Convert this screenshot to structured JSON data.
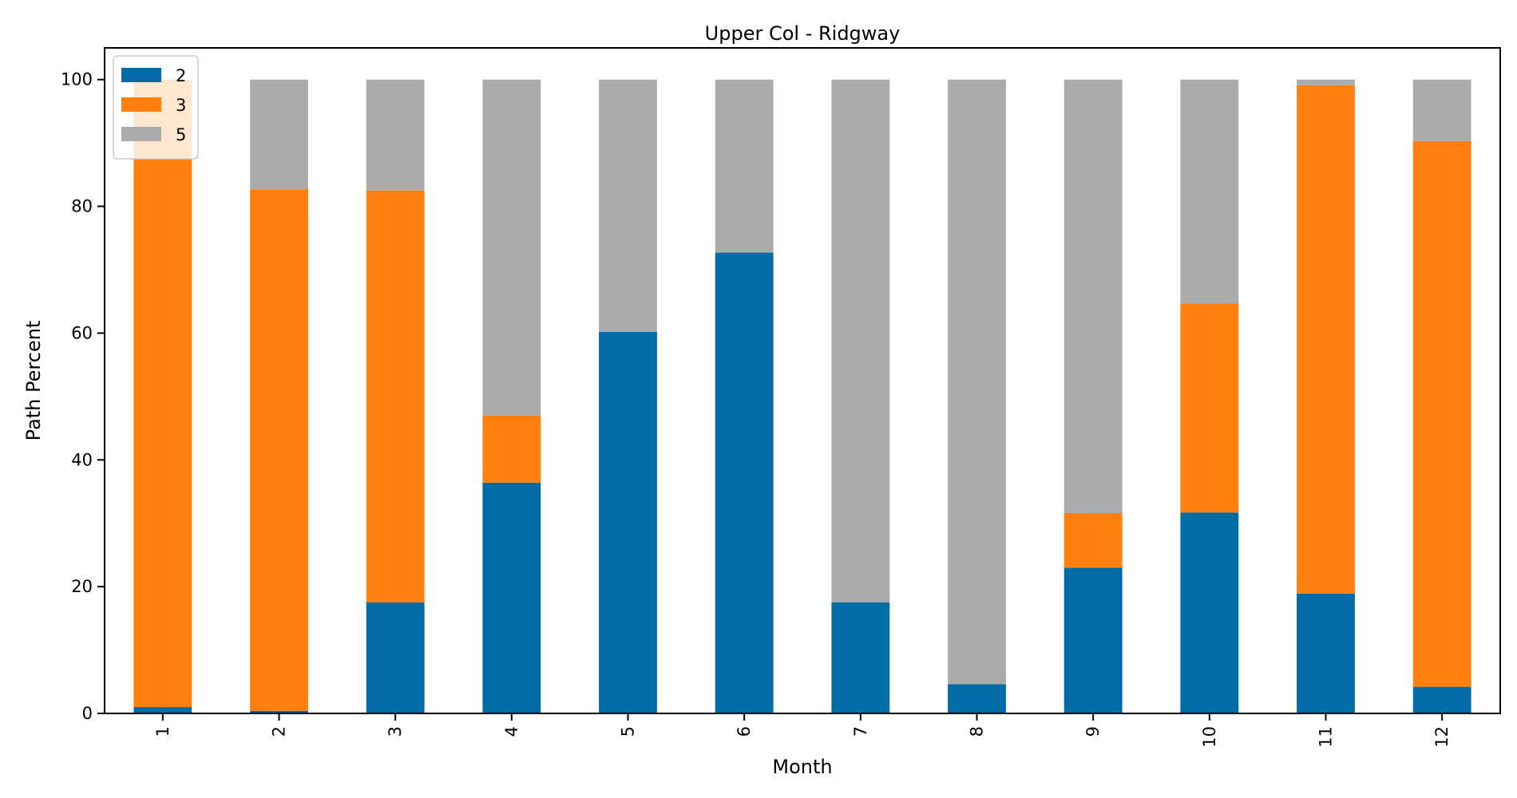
{
  "chart_data": {
    "type": "bar",
    "stacked": true,
    "title": "Upper Col - Ridgway",
    "xlabel": "Month",
    "ylabel": "Path Percent",
    "categories": [
      "1",
      "2",
      "3",
      "4",
      "5",
      "6",
      "7",
      "8",
      "9",
      "10",
      "11",
      "12"
    ],
    "ylim": [
      0,
      105
    ],
    "yticks": [
      0,
      20,
      40,
      60,
      80,
      100
    ],
    "grid": false,
    "legend_position": "top-left",
    "series": [
      {
        "name": "2",
        "color": "#006ba4",
        "values": [
          1.0,
          0.4,
          17.5,
          36.4,
          60.2,
          72.7,
          17.5,
          4.6,
          23.0,
          31.7,
          18.9,
          4.2
        ]
      },
      {
        "name": "3",
        "color": "#ff800e",
        "values": [
          99.0,
          82.3,
          65.0,
          10.6,
          0.0,
          0.0,
          0.0,
          0.0,
          8.6,
          33.0,
          80.2,
          86.1
        ]
      },
      {
        "name": "5",
        "color": "#ababab",
        "values": [
          0.0,
          17.3,
          17.5,
          53.0,
          39.8,
          27.3,
          82.5,
          95.4,
          68.4,
          35.3,
          0.9,
          9.7
        ]
      }
    ]
  }
}
